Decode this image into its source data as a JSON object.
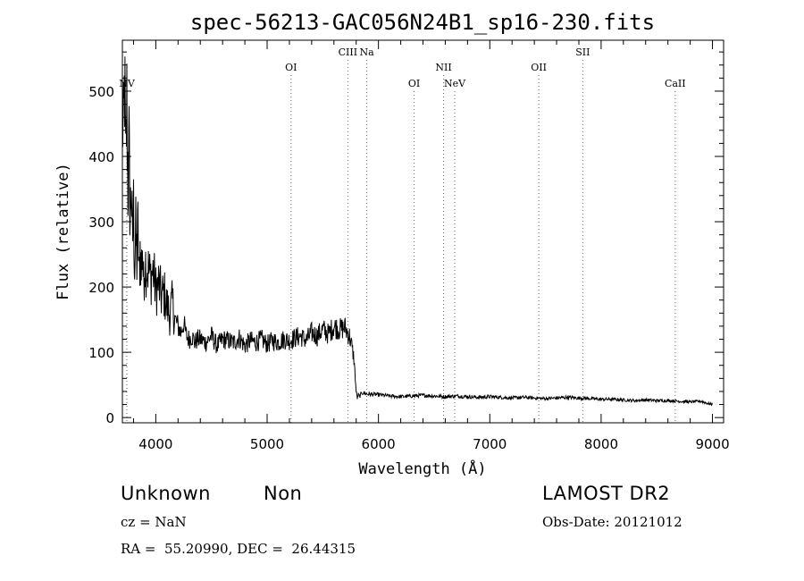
{
  "chart_data": {
    "type": "line",
    "title": "spec-56213-GAC056N24B1_sp16-230.fits",
    "xlabel": "Wavelength (Å)",
    "ylabel": "Flux (relative)",
    "xlim": [
      3700,
      9100
    ],
    "ylim": [
      -8,
      578
    ],
    "xticks": [
      4000,
      5000,
      6000,
      7000,
      8000,
      9000
    ],
    "yticks": [
      0,
      100,
      200,
      300,
      400,
      500
    ],
    "grid": false,
    "series": [
      {
        "name": "spectrum",
        "x": [
          3700,
          3710,
          3720,
          3730,
          3740,
          3750,
          3760,
          3770,
          3780,
          3790,
          3800,
          3810,
          3820,
          3830,
          3840,
          3850,
          3860,
          3870,
          3880,
          3890,
          3900,
          3925,
          3950,
          3975,
          4000,
          4025,
          4050,
          4075,
          4100,
          4125,
          4150,
          4175,
          4200,
          4225,
          4250,
          4275,
          4300,
          4325,
          4350,
          4375,
          4400,
          4450,
          4500,
          4550,
          4600,
          4650,
          4700,
          4750,
          4800,
          4850,
          4900,
          4950,
          5000,
          5050,
          5100,
          5150,
          5200,
          5250,
          5300,
          5350,
          5400,
          5450,
          5500,
          5550,
          5600,
          5650,
          5700,
          5720,
          5740,
          5760,
          5780,
          5800,
          5810,
          5820,
          5830,
          5850,
          5900,
          6000,
          6100,
          6200,
          6300,
          6400,
          6500,
          6600,
          6700,
          6800,
          6900,
          7000,
          7100,
          7200,
          7300,
          7400,
          7500,
          7600,
          7700,
          7800,
          7900,
          8000,
          8100,
          8200,
          8300,
          8400,
          8500,
          8600,
          8700,
          8800,
          8900,
          8950,
          9000
        ],
        "values": [
          470,
          420,
          520,
          380,
          480,
          350,
          410,
          300,
          360,
          260,
          320,
          230,
          280,
          240,
          290,
          210,
          260,
          220,
          270,
          200,
          240,
          230,
          215,
          225,
          195,
          205,
          185,
          190,
          170,
          160,
          175,
          150,
          140,
          130,
          145,
          125,
          120,
          125,
          115,
          120,
          120,
          115,
          125,
          110,
          120,
          118,
          115,
          122,
          110,
          118,
          115,
          120,
          112,
          118,
          115,
          120,
          118,
          122,
          125,
          118,
          130,
          125,
          135,
          128,
          140,
          135,
          138,
          130,
          125,
          110,
          90,
          40,
          30,
          35,
          32,
          38,
          36,
          35,
          33,
          32,
          33,
          34,
          33,
          32,
          33,
          32,
          31,
          32,
          31,
          30,
          31,
          30,
          29,
          30,
          31,
          30,
          29,
          28,
          28,
          27,
          26,
          27,
          26,
          26,
          25,
          24,
          25,
          22,
          20
        ]
      }
    ],
    "lines": [
      {
        "label": "NV",
        "x": 3740,
        "tier": 3
      },
      {
        "label": "OI",
        "x": 5215,
        "tier": 2
      },
      {
        "label": "CIII",
        "x": 5725,
        "tier": 1
      },
      {
        "label": "Na",
        "x": 5895,
        "tier": 1
      },
      {
        "label": "OI",
        "x": 6320,
        "tier": 3
      },
      {
        "label": "NII",
        "x": 6585,
        "tier": 2
      },
      {
        "label": "NeV",
        "x": 6685,
        "tier": 3
      },
      {
        "label": "OII",
        "x": 7440,
        "tier": 2
      },
      {
        "label": "SII",
        "x": 7835,
        "tier": 1
      },
      {
        "label": "CaII",
        "x": 8665,
        "tier": 3
      }
    ]
  },
  "info": {
    "class_label": "Unknown",
    "subclass_label": "Non",
    "redshift": "cz = NaN",
    "coordinates": "RA =  55.20990, DEC =  26.44315",
    "survey": "LAMOST DR2",
    "obs_date": "Obs-Date: 20121012"
  }
}
